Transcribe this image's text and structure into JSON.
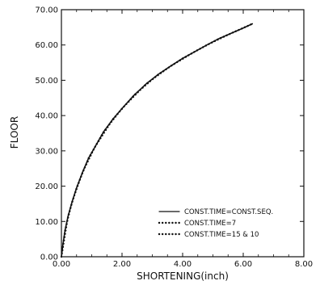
{
  "chart_data": {
    "type": "line",
    "title": "",
    "xlabel": "SHORTENING(inch)",
    "ylabel": "FLOOR",
    "xlim": [
      0,
      8
    ],
    "ylim": [
      0,
      70
    ],
    "grid": false,
    "legend_placement": "bottom-right",
    "xticks": [
      "0.00",
      "2.00",
      "4.00",
      "6.00",
      "8.00"
    ],
    "yticks": [
      "0.00",
      "10.00",
      "20.00",
      "30.00",
      "40.00",
      "50.00",
      "60.00",
      "70.00"
    ],
    "series": [
      {
        "name": "CONST.TIME=CONST.SEQ.",
        "style": "solid",
        "x": [
          0,
          0.05,
          0.12,
          0.22,
          0.35,
          0.5,
          0.7,
          0.9,
          1.1,
          1.4,
          1.7,
          2.0,
          2.4,
          2.8,
          3.2,
          3.6,
          4.0,
          4.4,
          4.8,
          5.2,
          5.6,
          6.0,
          6.3
        ],
        "y": [
          0,
          3.5,
          7.5,
          11.5,
          15.5,
          19.5,
          24,
          28,
          31,
          35.5,
          39,
          42,
          45.8,
          49,
          51.7,
          54,
          56.2,
          58.1,
          60,
          61.8,
          63.3,
          64.8,
          66
        ]
      },
      {
        "name": "CONST.TIME=7",
        "style": "dotted",
        "x": [
          0,
          0.12,
          0.35,
          0.7,
          1.1,
          1.7,
          2.4,
          3.2,
          4.0,
          4.8,
          5.6,
          6.3
        ],
        "y": [
          0,
          7.5,
          15.5,
          24,
          31,
          39,
          45.8,
          51.7,
          56.2,
          60,
          63.3,
          66
        ]
      },
      {
        "name": "CONST.TIME=15 & 10",
        "style": "dotted",
        "x": [
          0,
          0.22,
          0.5,
          0.9,
          1.4,
          2.0,
          2.8,
          3.6,
          4.4,
          5.2,
          6.0,
          6.3
        ],
        "y": [
          0,
          11.5,
          19.5,
          28,
          35.5,
          42,
          49,
          54,
          58.1,
          61.8,
          64.8,
          66
        ]
      }
    ]
  }
}
